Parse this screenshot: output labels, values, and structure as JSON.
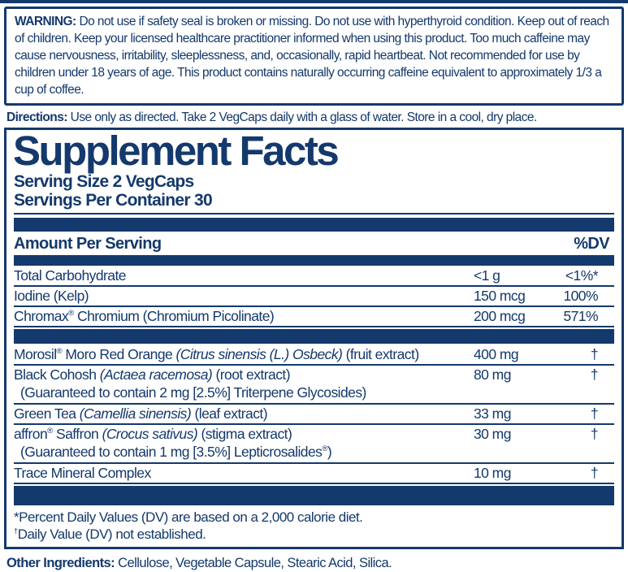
{
  "colors": {
    "navy": "#14396C",
    "background": "#FFFFFF"
  },
  "warning": {
    "label": "WARNING:",
    "text": " Do not use if safety seal is broken or missing. Do not use with hyperthyroid condition. Keep out of reach of children. Keep your licensed healthcare practitioner informed when using this product. Too much caffeine may cause nervousness, irritability, sleeplessness, and, occasionally, rapid heartbeat. Not recommended for use by children under 18 years of age. This product contains naturally occurring caffeine equivalent to approximately 1/3 a cup of coffee."
  },
  "directions": {
    "label": "Directions:",
    "text": " Use only as directed. Take 2 VegCaps daily with a glass of water. Store in a cool, dry place."
  },
  "supplement_facts": {
    "title": "Supplement Facts",
    "serving_size": "Serving Size 2 VegCaps",
    "servings_per_container": "Servings Per Container 30",
    "header": {
      "amount_per_serving": "Amount Per Serving",
      "dv": "%DV"
    },
    "nutrient_rows": [
      {
        "segments": [
          {
            "t": "Total Carbohydrate"
          }
        ],
        "amount": "<1 g",
        "dv": "<1%*"
      },
      {
        "segments": [
          {
            "t": "Iodine (Kelp)"
          }
        ],
        "amount": "150 mcg",
        "dv": "100%"
      },
      {
        "segments": [
          {
            "t": "Chromax"
          },
          {
            "t": "®",
            "sup": true
          },
          {
            "t": " Chromium (Chromium Picolinate)"
          }
        ],
        "amount": "200 mcg",
        "dv": "571%"
      }
    ],
    "herbal_rows": [
      {
        "segments": [
          {
            "t": "Morosil"
          },
          {
            "t": "®",
            "sup": true
          },
          {
            "t": " Moro Red Orange "
          },
          {
            "t": "(Citrus sinensis (L.) Osbeck)",
            "italic": true
          },
          {
            "t": " (fruit extract)"
          }
        ],
        "amount": "400 mg",
        "dv": "†"
      },
      {
        "segments": [
          {
            "t": "Black Cohosh "
          },
          {
            "t": "(Actaea racemosa)",
            "italic": true
          },
          {
            "t": " (root extract)"
          }
        ],
        "amount": "80 mg",
        "dv": "†",
        "sub": [
          {
            "t": "(Guaranteed to contain 2 mg [2.5%] Triterpene Glycosides)"
          }
        ]
      },
      {
        "segments": [
          {
            "t": "Green Tea "
          },
          {
            "t": "(Camellia sinensis)",
            "italic": true
          },
          {
            "t": " (leaf extract)"
          }
        ],
        "amount": "33 mg",
        "dv": "†"
      },
      {
        "segments": [
          {
            "t": "affron"
          },
          {
            "t": "®",
            "sup": true
          },
          {
            "t": " Saffron "
          },
          {
            "t": "(Crocus sativus)",
            "italic": true
          },
          {
            "t": " (stigma extract)"
          }
        ],
        "amount": "30 mg",
        "dv": "†",
        "sub": [
          {
            "t": "(Guaranteed to contain 1 mg [3.5%] Lepticrosalides"
          },
          {
            "t": "®",
            "sup": true
          },
          {
            "t": ")"
          }
        ]
      },
      {
        "segments": [
          {
            "t": "Trace Mineral Complex"
          }
        ],
        "amount": "10 mg",
        "dv": "†"
      }
    ],
    "footnotes": [
      [
        {
          "t": "*Percent Daily Values (DV) are based on a 2,000 calorie diet."
        }
      ],
      [
        {
          "t": "†",
          "sup": true
        },
        {
          "t": "Daily Value (DV) not established."
        }
      ]
    ]
  },
  "other_ingredients": {
    "label": "Other Ingredients:",
    "text": " Cellulose, Vegetable Capsule, Stearic Acid, Silica."
  }
}
